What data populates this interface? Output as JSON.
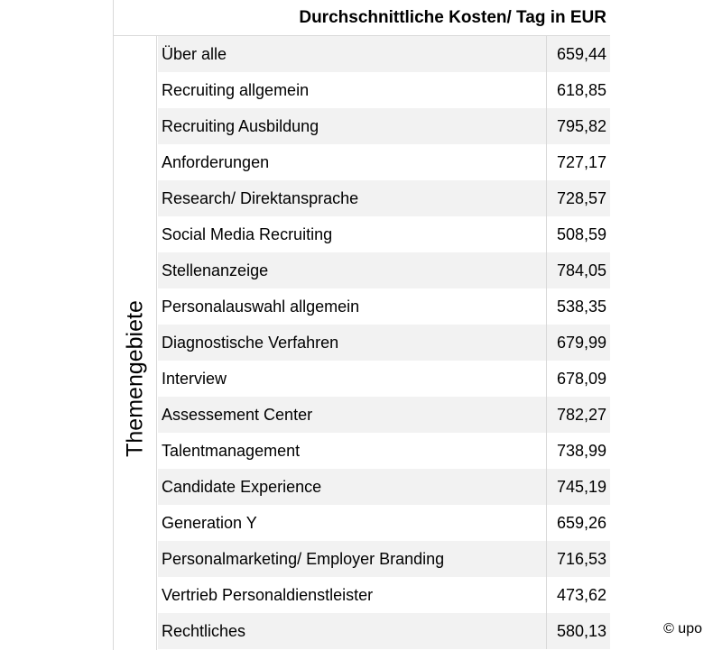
{
  "chart_data": {
    "type": "table",
    "column_header": "Durchschnittliche Kosten/ Tag in EUR",
    "row_header": "Themengebiete",
    "rows": [
      {
        "label": "Über alle",
        "value": "659,44"
      },
      {
        "label": "Recruiting allgemein",
        "value": "618,85"
      },
      {
        "label": "Recruiting Ausbildung",
        "value": "795,82"
      },
      {
        "label": "Anforderungen",
        "value": "727,17"
      },
      {
        "label": "Research/ Direktansprache",
        "value": "728,57"
      },
      {
        "label": "Social Media Recruiting",
        "value": "508,59"
      },
      {
        "label": "Stellenanzeige",
        "value": "784,05"
      },
      {
        "label": "Personalauswahl allgemein",
        "value": "538,35"
      },
      {
        "label": "Diagnostische Verfahren",
        "value": "679,99"
      },
      {
        "label": "Interview",
        "value": "678,09"
      },
      {
        "label": "Assessement Center",
        "value": "782,27"
      },
      {
        "label": "Talentmanagement",
        "value": "738,99"
      },
      {
        "label": "Candidate Experience",
        "value": "745,19"
      },
      {
        "label": "Generation Y",
        "value": "659,26"
      },
      {
        "label": "Personalmarketing/ Employer Branding",
        "value": "716,53"
      },
      {
        "label": "Vertrieb Personaldienstleister",
        "value": "473,62"
      },
      {
        "label": "Rechtliches",
        "value": "580,13"
      }
    ]
  },
  "footer": {
    "copyright": "© upo"
  },
  "colors": {
    "shaded_row": "#f2f2f2",
    "grid_line": "#d9d9d9"
  }
}
